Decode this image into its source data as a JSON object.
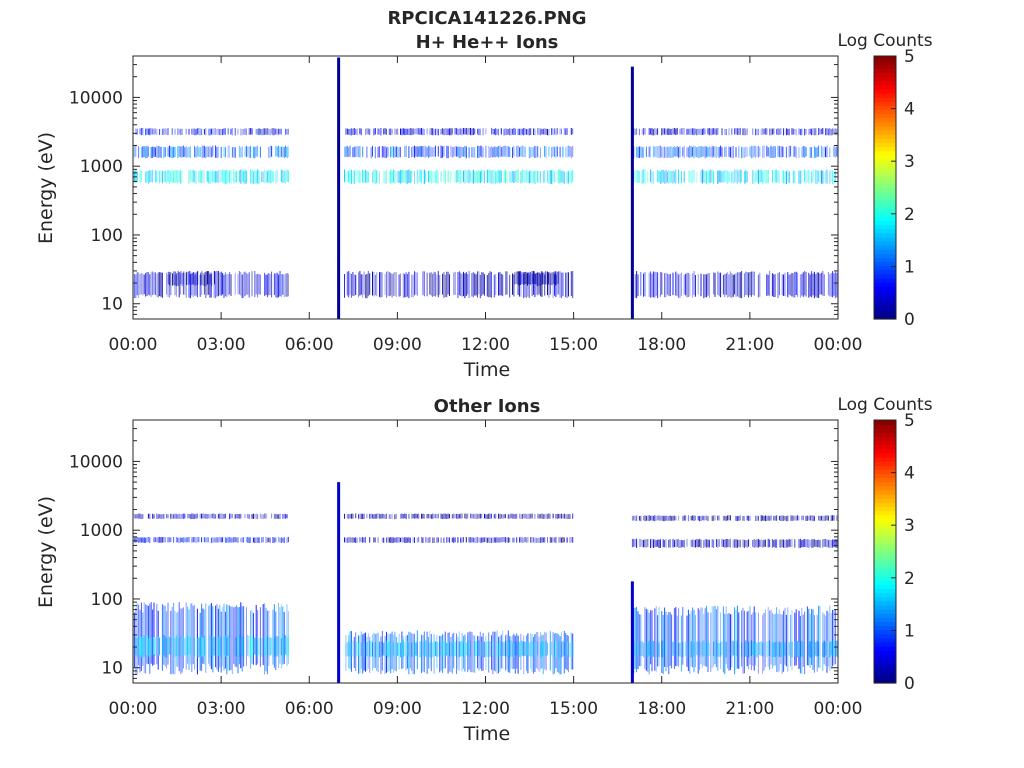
{
  "figure_title": "RPCICA141226.PNG",
  "colorbar": {
    "label": "Log Counts",
    "ticks": [
      "0",
      "1",
      "2",
      "3",
      "4",
      "5"
    ],
    "range": [
      0,
      5
    ],
    "colormap": "jet"
  },
  "chart_data": [
    {
      "type": "heatmap",
      "title": "H+ He++ Ions",
      "xlabel": "Time",
      "ylabel": "Energy (eV)",
      "x_ticks": [
        "00:00",
        "03:00",
        "06:00",
        "09:00",
        "12:00",
        "15:00",
        "18:00",
        "21:00",
        "00:00"
      ],
      "y_ticks": [
        "10",
        "100",
        "1000",
        "10000"
      ],
      "y_scale": "log",
      "x_range_hours": [
        0,
        24
      ],
      "y_range_eV": [
        6,
        40000
      ],
      "grid": false,
      "bands": [
        {
          "t_start": 0.0,
          "t_end": 5.3,
          "e_low": 550,
          "e_high": 900,
          "level": 1.8
        },
        {
          "t_start": 0.0,
          "t_end": 5.3,
          "e_low": 1300,
          "e_high": 2000,
          "level": 1.1
        },
        {
          "t_start": 0.0,
          "t_end": 5.3,
          "e_low": 2800,
          "e_high": 3600,
          "level": 0.6
        },
        {
          "t_start": 0.0,
          "t_end": 5.3,
          "e_low": 12,
          "e_high": 30,
          "level": 0.4
        },
        {
          "t_start": 1.2,
          "t_end": 2.8,
          "e_low": 18,
          "e_high": 30,
          "level": 0.2
        },
        {
          "t_start": 7.2,
          "t_end": 15.0,
          "e_low": 550,
          "e_high": 900,
          "level": 1.8
        },
        {
          "t_start": 7.2,
          "t_end": 15.0,
          "e_low": 1300,
          "e_high": 2000,
          "level": 1.0
        },
        {
          "t_start": 7.2,
          "t_end": 15.0,
          "e_low": 2800,
          "e_high": 3600,
          "level": 0.5
        },
        {
          "t_start": 7.2,
          "t_end": 15.0,
          "e_low": 12,
          "e_high": 30,
          "level": 0.3
        },
        {
          "t_start": 13.0,
          "t_end": 14.5,
          "e_low": 18,
          "e_high": 30,
          "level": 0.2
        },
        {
          "t_start": 17.0,
          "t_end": 24.0,
          "e_low": 550,
          "e_high": 900,
          "level": 1.7
        },
        {
          "t_start": 17.0,
          "t_end": 24.0,
          "e_low": 1300,
          "e_high": 2000,
          "level": 1.0
        },
        {
          "t_start": 17.0,
          "t_end": 24.0,
          "e_low": 2800,
          "e_high": 3600,
          "level": 0.5
        },
        {
          "t_start": 17.0,
          "t_end": 24.0,
          "e_low": 12,
          "e_high": 30,
          "level": 0.4
        }
      ],
      "spikes": [
        {
          "t": 7.0,
          "e_low": 6,
          "e_high": 38000,
          "level": 0.1
        },
        {
          "t": 17.0,
          "e_low": 6,
          "e_high": 28000,
          "level": 0.1
        }
      ]
    },
    {
      "type": "heatmap",
      "title": "Other Ions",
      "xlabel": "Time",
      "ylabel": "Energy (eV)",
      "x_ticks": [
        "00:00",
        "03:00",
        "06:00",
        "09:00",
        "12:00",
        "15:00",
        "18:00",
        "21:00",
        "00:00"
      ],
      "y_ticks": [
        "10",
        "100",
        "1000",
        "10000"
      ],
      "y_scale": "log",
      "x_range_hours": [
        0,
        24
      ],
      "y_range_eV": [
        6,
        40000
      ],
      "grid": false,
      "bands": [
        {
          "t_start": 0.0,
          "t_end": 5.3,
          "e_low": 650,
          "e_high": 800,
          "level": 0.6
        },
        {
          "t_start": 0.0,
          "t_end": 5.3,
          "e_low": 1450,
          "e_high": 1750,
          "level": 0.3
        },
        {
          "t_start": 0.0,
          "t_end": 5.3,
          "e_low": 8,
          "e_high": 90,
          "level": 1.0
        },
        {
          "t_start": 0.0,
          "t_end": 5.3,
          "e_low": 14,
          "e_high": 30,
          "level": 1.6
        },
        {
          "t_start": 7.2,
          "t_end": 15.0,
          "e_low": 650,
          "e_high": 800,
          "level": 0.3
        },
        {
          "t_start": 7.2,
          "t_end": 15.0,
          "e_low": 1450,
          "e_high": 1750,
          "level": 0.2
        },
        {
          "t_start": 7.2,
          "t_end": 15.0,
          "e_low": 8,
          "e_high": 35,
          "level": 1.1
        },
        {
          "t_start": 7.2,
          "t_end": 15.0,
          "e_low": 14,
          "e_high": 25,
          "level": 1.5
        },
        {
          "t_start": 17.0,
          "t_end": 24.0,
          "e_low": 550,
          "e_high": 750,
          "level": 0.3
        },
        {
          "t_start": 17.0,
          "t_end": 24.0,
          "e_low": 1350,
          "e_high": 1650,
          "level": 0.2
        },
        {
          "t_start": 17.0,
          "t_end": 24.0,
          "e_low": 8,
          "e_high": 80,
          "level": 1.0
        },
        {
          "t_start": 17.0,
          "t_end": 24.0,
          "e_low": 14,
          "e_high": 25,
          "level": 1.4
        }
      ],
      "spikes": [
        {
          "t": 7.0,
          "e_low": 6,
          "e_high": 5000,
          "level": 0.4
        },
        {
          "t": 17.0,
          "e_low": 6,
          "e_high": 180,
          "level": 0.4
        }
      ]
    }
  ]
}
